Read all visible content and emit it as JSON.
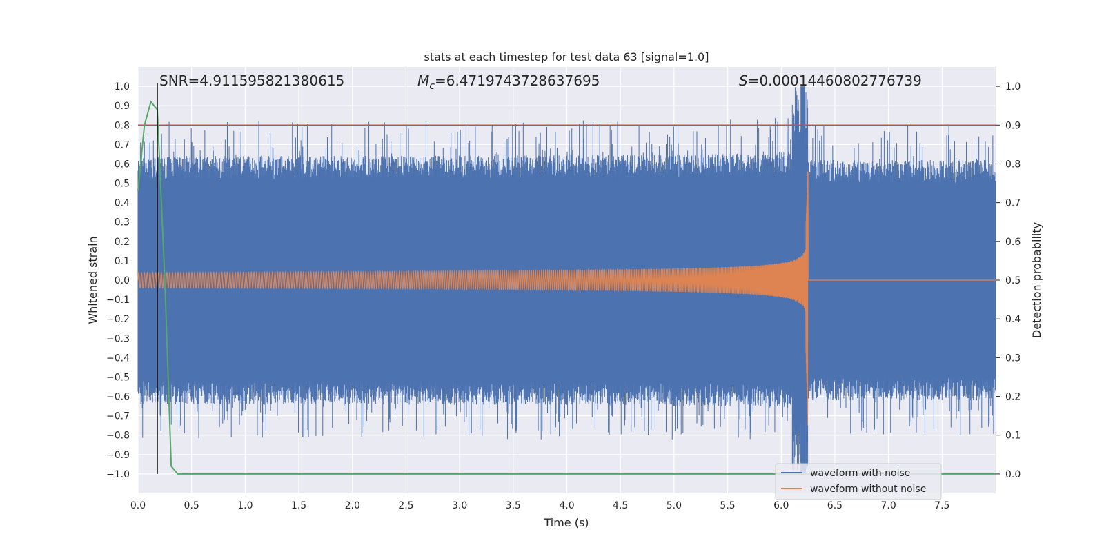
{
  "chart_data": {
    "type": "line",
    "title": "stats at each timestep for test data 63 [signal=1.0]",
    "xlabel": "Time (s)",
    "ylabel_left": "Whitened strain",
    "ylabel_right": "Detection probability",
    "xlim": [
      0.0,
      8.0
    ],
    "ylim_left": [
      -1.1,
      1.1
    ],
    "ylim_right": [
      -0.05,
      1.05
    ],
    "x_ticks": [
      "0.0",
      "0.5",
      "1.0",
      "1.5",
      "2.0",
      "2.5",
      "3.0",
      "3.5",
      "4.0",
      "4.5",
      "5.0",
      "5.5",
      "6.0",
      "6.5",
      "7.0",
      "7.5"
    ],
    "x_tick_values": [
      0.0,
      0.5,
      1.0,
      1.5,
      2.0,
      2.5,
      3.0,
      3.5,
      4.0,
      4.5,
      5.0,
      5.5,
      6.0,
      6.5,
      7.0,
      7.5
    ],
    "y_left_ticks": [
      "1.0",
      "0.9",
      "0.8",
      "0.7",
      "0.6",
      "0.5",
      "0.4",
      "0.3",
      "0.2",
      "0.1",
      "0.0",
      "−0.1",
      "−0.2",
      "−0.3",
      "−0.4",
      "−0.5",
      "−0.6",
      "−0.7",
      "−0.8",
      "−0.9",
      "−1.0"
    ],
    "y_left_tick_values": [
      1.0,
      0.9,
      0.8,
      0.7,
      0.6,
      0.5,
      0.4,
      0.3,
      0.2,
      0.1,
      0.0,
      -0.1,
      -0.2,
      -0.3,
      -0.4,
      -0.5,
      -0.6,
      -0.7,
      -0.8,
      -0.9,
      -1.0
    ],
    "y_right_ticks": [
      "1.0",
      "0.9",
      "0.8",
      "0.7",
      "0.6",
      "0.5",
      "0.4",
      "0.3",
      "0.2",
      "0.1",
      "0.0"
    ],
    "y_right_tick_values": [
      1.0,
      0.9,
      0.8,
      0.7,
      0.6,
      0.5,
      0.4,
      0.3,
      0.2,
      0.1,
      0.0
    ],
    "annotations": {
      "snr": "SNR=4.911595821380615",
      "mc_symbol": "M",
      "mc_sub": "c",
      "mc_value": "=6.4719743728637695",
      "s_symbol": "S",
      "s_value": "=0.00014460802776739"
    },
    "series": [
      {
        "name": "waveform with noise",
        "color": "#4c72b0",
        "axis": "left",
        "description_values": {
          "typical_max": 0.6,
          "typical_min": -0.6,
          "peak_time": 6.2,
          "peak_max": 1.0,
          "peak_min": -1.0
        }
      },
      {
        "name": "waveform without noise",
        "color": "#dd8452",
        "axis": "left",
        "envelope": {
          "start_time": 0.0,
          "start_amp": 0.04,
          "merger_time": 6.25,
          "merger_max": 0.56,
          "merger_min": -0.75
        }
      },
      {
        "name": "detection probability",
        "color": "#55a868",
        "axis": "right",
        "x": [
          0.0,
          0.06,
          0.12,
          0.18,
          0.25,
          0.31,
          0.37,
          0.5,
          8.0
        ],
        "y": [
          0.73,
          0.9,
          0.96,
          0.94,
          0.5,
          0.02,
          0.0,
          0.0,
          0.0
        ]
      }
    ],
    "threshold": {
      "axis": "right",
      "value": 0.9,
      "color": "#c44e52"
    },
    "marker_line": {
      "x": 0.18,
      "y_from": -1.0,
      "y_to": 1.0,
      "color": "#000000"
    },
    "legend_position": "bottom-right",
    "legend": [
      "waveform with noise",
      "waveform without noise"
    ],
    "grid": true,
    "background": "#eaeaf2"
  }
}
